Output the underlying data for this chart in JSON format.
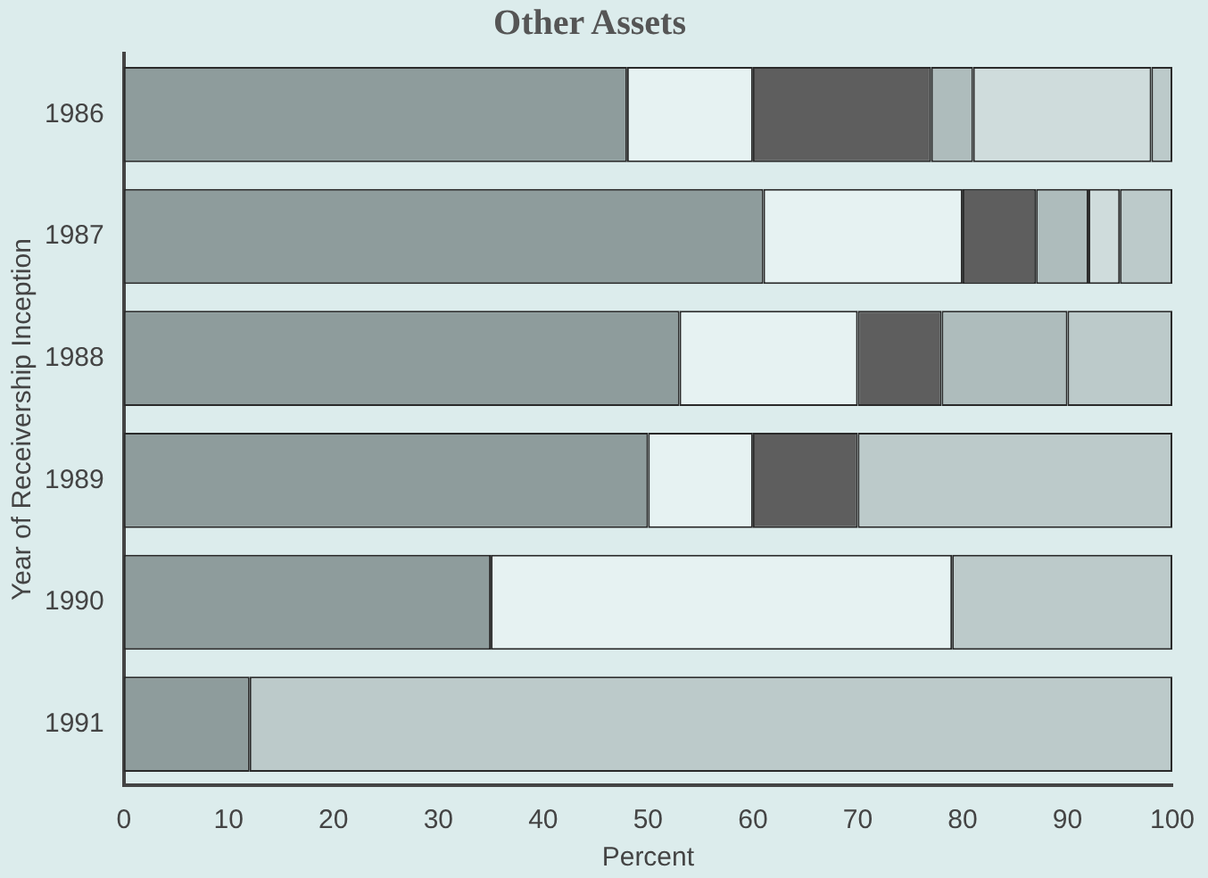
{
  "chart_data": {
    "type": "bar",
    "orientation": "horizontal",
    "stacked": true,
    "title": "Other Assets",
    "xlabel": "Percent",
    "ylabel": "Year of Receivership Inception",
    "categories": [
      "1986",
      "1987",
      "1988",
      "1989",
      "1990",
      "1991"
    ],
    "series": [
      {
        "color": "#8e9c9c",
        "values": [
          48,
          61,
          53,
          50,
          35,
          12
        ]
      },
      {
        "color": "#e6f2f2",
        "values": [
          12,
          19,
          17,
          10,
          44,
          null
        ]
      },
      {
        "color": "#5e5e5e",
        "values": [
          17,
          7,
          8,
          10,
          null,
          null
        ]
      },
      {
        "color": "#aebcbc",
        "values": [
          4,
          5,
          12,
          null,
          null,
          null
        ]
      },
      {
        "color": "#cfdcdc",
        "values": [
          17,
          3,
          null,
          null,
          null,
          null
        ]
      },
      {
        "color": "#bccaca",
        "values": [
          2,
          5,
          10,
          30,
          21,
          88
        ]
      }
    ],
    "xlim": [
      0,
      100
    ],
    "xticks": [
      0,
      10,
      20,
      30,
      40,
      50,
      60,
      70,
      80,
      90,
      100
    ],
    "grid": false,
    "legend": false
  }
}
